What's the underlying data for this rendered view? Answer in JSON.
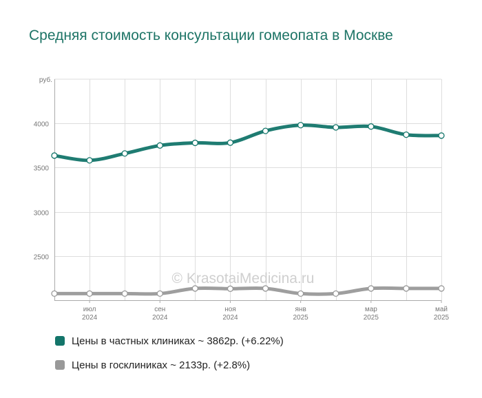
{
  "title": "Средняя стоимость консультации гомеопата в Москве",
  "watermark": "© KrasotaiMedicina.ru",
  "colors": {
    "private": "#13756a",
    "state": "#999999",
    "grid": "#dddddd",
    "axis": "#aaaaaa",
    "title": "#1d7466"
  },
  "legend": [
    {
      "label": "Цены в частных клиниках ~ 3862р. (+6.22%)",
      "color": "#13756a"
    },
    {
      "label": "Цены в госклиниках ~ 2133р. (+2.8%)",
      "color": "#999999"
    }
  ],
  "chart_data": {
    "type": "line",
    "title": "Средняя стоимость консультации гомеопата в Москве",
    "ylabel": "руб.",
    "ylim": [
      2000,
      4500
    ],
    "yticks": [
      2500,
      3000,
      3500,
      4000
    ],
    "grid": true,
    "legend_position": "bottom",
    "x": [
      "2024-06",
      "2024-07",
      "2024-08",
      "2024-09",
      "2024-10",
      "2024-11",
      "2024-12",
      "2025-01",
      "2025-02",
      "2025-03",
      "2025-04",
      "2025-05"
    ],
    "xtick_labels": [
      {
        "index": 1,
        "month": "июл",
        "year": "2024"
      },
      {
        "index": 3,
        "month": "сен",
        "year": "2024"
      },
      {
        "index": 5,
        "month": "ноя",
        "year": "2024"
      },
      {
        "index": 7,
        "month": "янв",
        "year": "2025"
      },
      {
        "index": 9,
        "month": "мар",
        "year": "2025"
      },
      {
        "index": 11,
        "month": "май",
        "year": "2025"
      }
    ],
    "series": [
      {
        "name": "Цены в частных клиниках ~ 3862р. (+6.22%)",
        "color": "#13756a",
        "values": [
          3636,
          3582,
          3660,
          3750,
          3780,
          3782,
          3915,
          3980,
          3955,
          3965,
          3872,
          3862
        ]
      },
      {
        "name": "Цены в госклиниках ~ 2133р. (+2.8%)",
        "color": "#999999",
        "values": [
          2075,
          2075,
          2075,
          2075,
          2133,
          2130,
          2133,
          2075,
          2075,
          2133,
          2133,
          2133
        ]
      }
    ]
  }
}
